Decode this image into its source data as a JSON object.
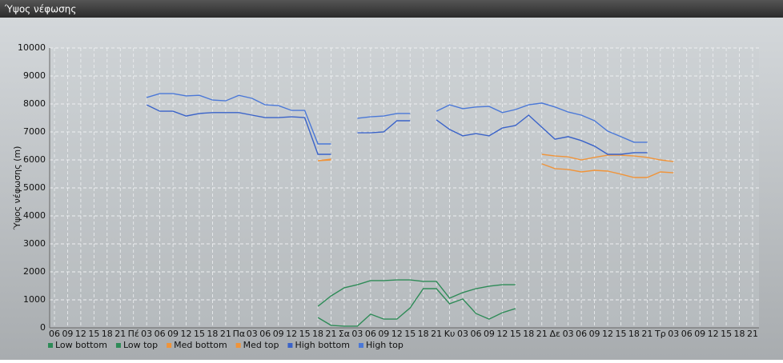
{
  "chart_data": {
    "type": "line",
    "title": "Ύψος νέφωσης",
    "y_label": "Ύψος νέφωσης (m)",
    "categories": [
      "06",
      "09",
      "12",
      "15",
      "18",
      "21",
      "Πέ",
      "03",
      "06",
      "09",
      "12",
      "15",
      "18",
      "21",
      "Πα",
      "03",
      "06",
      "09",
      "12",
      "15",
      "18",
      "21",
      "Σα",
      "03",
      "06",
      "09",
      "12",
      "15",
      "18",
      "21",
      "Κυ",
      "03",
      "06",
      "09",
      "12",
      "15",
      "18",
      "21",
      "Δε",
      "03",
      "06",
      "09",
      "12",
      "15",
      "18",
      "21",
      "Τρ",
      "03",
      "06",
      "09",
      "12",
      "15",
      "18",
      "21"
    ],
    "ylim": [
      0,
      10000
    ],
    "yticks": [
      0,
      1000,
      2000,
      3000,
      4000,
      5000,
      6000,
      7000,
      8000,
      9000,
      10000
    ],
    "grid": true,
    "series": [
      {
        "name": "Low bottom",
        "color": "#2e8b57",
        "values": [
          null,
          null,
          null,
          null,
          null,
          null,
          null,
          null,
          null,
          null,
          null,
          null,
          null,
          null,
          null,
          null,
          null,
          null,
          null,
          null,
          370,
          90,
          60,
          60,
          490,
          310,
          310,
          710,
          1400,
          1400,
          860,
          1030,
          510,
          310,
          540,
          690,
          null,
          null,
          null,
          null,
          null,
          null,
          null,
          null,
          null,
          null,
          null,
          null,
          null,
          null,
          null,
          null,
          null,
          null
        ]
      },
      {
        "name": "Low top",
        "color": "#2e8b57",
        "values": [
          null,
          null,
          null,
          null,
          null,
          null,
          null,
          null,
          null,
          null,
          null,
          null,
          null,
          null,
          null,
          null,
          null,
          null,
          null,
          null,
          770,
          1140,
          1430,
          1540,
          1690,
          1690,
          1710,
          1710,
          1660,
          1660,
          1060,
          1260,
          1400,
          1490,
          1540,
          1540,
          null,
          null,
          null,
          null,
          null,
          null,
          null,
          null,
          null,
          null,
          null,
          null,
          null,
          null,
          null,
          null,
          null,
          null
        ]
      },
      {
        "name": "Med bottom",
        "color": "#f0943a",
        "values": [
          null,
          null,
          null,
          null,
          null,
          null,
          null,
          null,
          null,
          null,
          null,
          null,
          null,
          null,
          null,
          null,
          null,
          null,
          null,
          null,
          5970,
          6000,
          null,
          null,
          null,
          null,
          null,
          null,
          null,
          null,
          null,
          null,
          null,
          null,
          null,
          null,
          null,
          5860,
          5690,
          5660,
          5570,
          5630,
          5600,
          5490,
          5370,
          5370,
          5570,
          5540,
          null,
          null,
          null,
          null,
          null,
          null
        ]
      },
      {
        "name": "Med top",
        "color": "#f0943a",
        "values": [
          null,
          null,
          null,
          null,
          null,
          null,
          null,
          null,
          null,
          null,
          null,
          null,
          null,
          null,
          null,
          null,
          null,
          null,
          null,
          null,
          5970,
          6030,
          null,
          null,
          null,
          null,
          null,
          null,
          null,
          null,
          null,
          null,
          null,
          null,
          null,
          null,
          null,
          6200,
          6140,
          6110,
          6000,
          6090,
          6170,
          6170,
          6140,
          6090,
          6000,
          5940,
          null,
          null,
          null,
          null,
          null,
          null
        ]
      },
      {
        "name": "High bottom",
        "color": "#3a63c9",
        "values": [
          null,
          null,
          null,
          null,
          null,
          null,
          null,
          7970,
          7740,
          7740,
          7570,
          7660,
          7690,
          7690,
          7690,
          7600,
          7510,
          7510,
          7540,
          7510,
          6200,
          6200,
          null,
          6970,
          6970,
          7000,
          7400,
          7400,
          null,
          7430,
          7090,
          6860,
          6940,
          6860,
          7140,
          7230,
          7600,
          7170,
          6740,
          6830,
          6690,
          6490,
          6200,
          6200,
          6260,
          6260,
          null,
          null,
          null,
          null,
          null,
          null,
          null,
          null
        ]
      },
      {
        "name": "High top",
        "color": "#4a78d8",
        "values": [
          null,
          null,
          null,
          null,
          null,
          null,
          null,
          8230,
          8370,
          8370,
          8290,
          8310,
          8140,
          8110,
          8310,
          8200,
          7970,
          7940,
          7770,
          7770,
          6570,
          6570,
          null,
          7490,
          7540,
          7570,
          7660,
          7660,
          null,
          7740,
          7970,
          7830,
          7890,
          7910,
          7690,
          7800,
          7970,
          8030,
          7890,
          7710,
          7600,
          7400,
          7030,
          6830,
          6630,
          6630,
          null,
          null,
          null,
          null,
          null,
          null,
          null,
          null
        ]
      }
    ]
  }
}
